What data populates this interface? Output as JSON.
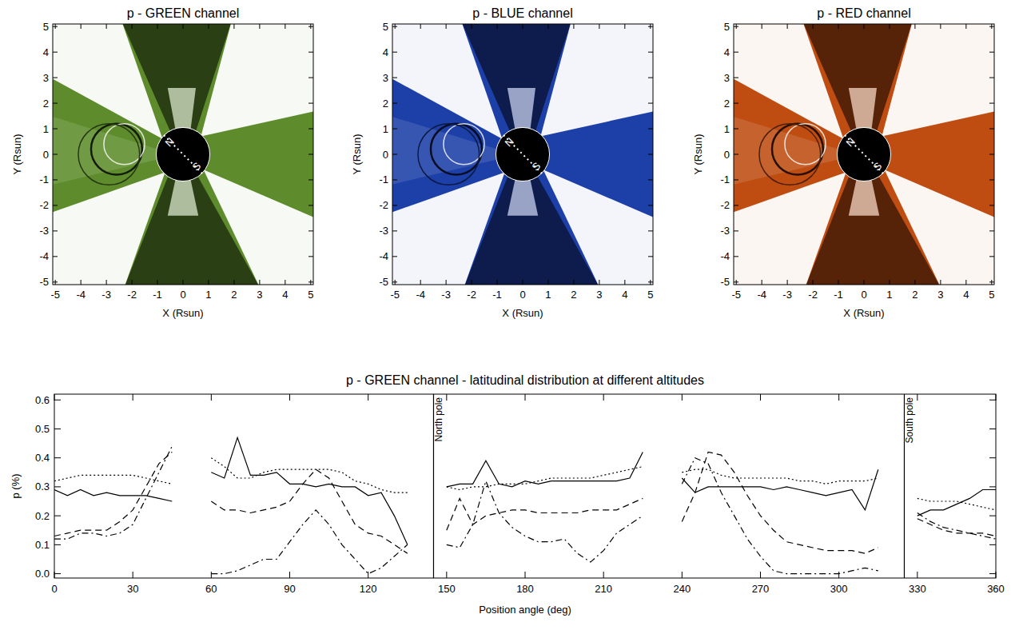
{
  "chart_data": [
    {
      "type": "image",
      "title": "p - GREEN channel",
      "xlabel": "X (Rsun)",
      "ylabel": "Y (Rsun)",
      "color": "#5e8c2c",
      "xlim": [
        -5.1,
        5.1
      ],
      "ylim": [
        -5.1,
        5.1
      ],
      "xticks": [
        -5,
        -4,
        -3,
        -2,
        -1,
        0,
        1,
        2,
        3,
        4,
        5
      ],
      "yticks": [
        -5,
        -4,
        -3,
        -2,
        -1,
        0,
        1,
        2,
        3,
        4,
        5
      ],
      "annotations": [
        "N",
        "S"
      ]
    },
    {
      "type": "image",
      "title": "p - BLUE channel",
      "xlabel": "X (Rsun)",
      "ylabel": "Y (Rsun)",
      "color": "#1d3fa8",
      "xlim": [
        -5.1,
        5.1
      ],
      "ylim": [
        -5.1,
        5.1
      ],
      "xticks": [
        -5,
        -4,
        -3,
        -2,
        -1,
        0,
        1,
        2,
        3,
        4,
        5
      ],
      "yticks": [
        -5,
        -4,
        -3,
        -2,
        -1,
        0,
        1,
        2,
        3,
        4,
        5
      ],
      "annotations": [
        "N",
        "S"
      ]
    },
    {
      "type": "image",
      "title": "p - RED channel",
      "xlabel": "X (Rsun)",
      "ylabel": "Y (Rsun)",
      "color": "#bf4d12",
      "xlim": [
        -5.1,
        5.1
      ],
      "ylim": [
        -5.1,
        5.1
      ],
      "xticks": [
        -5,
        -4,
        -3,
        -2,
        -1,
        0,
        1,
        2,
        3,
        4,
        5
      ],
      "yticks": [
        -5,
        -4,
        -3,
        -2,
        -1,
        0,
        1,
        2,
        3,
        4,
        5
      ],
      "annotations": [
        "N",
        "S"
      ]
    },
    {
      "type": "line",
      "title": "p - GREEN channel - latitudinal distribution at different altitudes",
      "xlabel": "Position angle (deg)",
      "ylabel": "p (%)",
      "xlim": [
        0,
        360
      ],
      "ylim": [
        -0.015,
        0.62
      ],
      "xticks": [
        0,
        30,
        60,
        90,
        120,
        150,
        180,
        210,
        240,
        270,
        300,
        330,
        360
      ],
      "yticks": [
        {
          "value": 0,
          "label": "0.0"
        },
        0.1,
        0.2,
        0.3,
        0.4,
        0.5,
        0.6
      ],
      "annotations": [
        {
          "x": 145,
          "text": "North pole"
        },
        {
          "x": 325,
          "text": "South pole"
        }
      ],
      "x": [
        0,
        5,
        10,
        15,
        20,
        25,
        30,
        35,
        40,
        45,
        50,
        55,
        60,
        65,
        70,
        75,
        80,
        85,
        90,
        95,
        100,
        105,
        110,
        115,
        120,
        125,
        130,
        135,
        140,
        145,
        150,
        155,
        160,
        165,
        170,
        175,
        180,
        185,
        190,
        195,
        200,
        205,
        210,
        215,
        220,
        225,
        230,
        235,
        240,
        245,
        250,
        255,
        260,
        265,
        270,
        275,
        280,
        285,
        290,
        295,
        300,
        305,
        310,
        315,
        320,
        325,
        330,
        335,
        340,
        345,
        350,
        355,
        360
      ],
      "series": [
        {
          "color": "#000000",
          "line_style": "solid",
          "values": [
            0.29,
            0.27,
            0.29,
            0.27,
            0.28,
            0.27,
            0.27,
            0.27,
            0.26,
            0.25,
            null,
            null,
            0.35,
            0.33,
            0.47,
            0.34,
            0.34,
            0.35,
            0.31,
            0.31,
            0.3,
            0.31,
            0.3,
            0.3,
            0.27,
            0.28,
            0.2,
            0.1,
            null,
            null,
            0.3,
            0.31,
            0.31,
            0.39,
            0.31,
            0.3,
            0.32,
            0.31,
            0.32,
            0.32,
            0.32,
            0.32,
            0.32,
            0.32,
            0.33,
            0.42,
            null,
            null,
            0.33,
            0.28,
            0.3,
            0.3,
            0.3,
            0.3,
            0.3,
            0.29,
            0.3,
            0.29,
            0.28,
            0.27,
            0.28,
            0.29,
            0.22,
            0.36,
            null,
            null,
            0.2,
            0.22,
            0.22,
            0.24,
            0.26,
            0.29,
            0.29
          ]
        },
        {
          "color": "#000000",
          "line_style": "dotted",
          "values": [
            0.32,
            0.33,
            0.34,
            0.34,
            0.34,
            0.34,
            0.34,
            0.33,
            0.32,
            0.31,
            null,
            null,
            0.4,
            0.37,
            0.33,
            0.33,
            0.35,
            0.36,
            0.36,
            0.36,
            0.36,
            0.36,
            0.35,
            0.32,
            0.31,
            0.29,
            0.28,
            0.28,
            null,
            null,
            0.3,
            0.29,
            0.3,
            0.3,
            0.31,
            0.31,
            0.31,
            0.32,
            0.33,
            0.33,
            0.33,
            0.33,
            0.34,
            0.35,
            0.36,
            0.37,
            null,
            null,
            0.35,
            0.36,
            0.36,
            0.34,
            0.33,
            0.33,
            0.33,
            0.33,
            0.33,
            0.32,
            0.32,
            0.31,
            0.32,
            0.32,
            0.32,
            0.33,
            null,
            null,
            0.26,
            0.25,
            0.25,
            0.25,
            0.24,
            0.23,
            0.22
          ]
        },
        {
          "color": "#000000",
          "line_style": "dashed",
          "values": [
            0.13,
            0.14,
            0.15,
            0.15,
            0.15,
            0.18,
            0.22,
            0.3,
            0.38,
            0.42,
            null,
            null,
            0.25,
            0.22,
            0.22,
            0.21,
            0.22,
            0.23,
            0.25,
            0.31,
            0.36,
            0.33,
            0.25,
            0.17,
            0.14,
            0.13,
            0.1,
            0.07,
            null,
            null,
            0.15,
            0.26,
            0.17,
            0.2,
            0.21,
            0.22,
            0.22,
            0.21,
            0.21,
            0.21,
            0.21,
            0.22,
            0.22,
            0.22,
            0.24,
            0.26,
            null,
            null,
            0.18,
            0.28,
            0.42,
            0.41,
            0.35,
            0.27,
            0.2,
            0.15,
            0.11,
            0.1,
            0.09,
            0.08,
            0.08,
            0.08,
            0.07,
            0.09,
            null,
            null,
            0.19,
            0.17,
            0.15,
            0.14,
            0.14,
            0.14,
            0.13
          ]
        },
        {
          "color": "#000000",
          "line_style": "dashdot",
          "values": [
            0.12,
            0.12,
            0.14,
            0.14,
            0.13,
            0.14,
            0.17,
            0.26,
            0.35,
            0.44,
            null,
            null,
            0.0,
            0.0,
            0.01,
            0.03,
            0.05,
            0.05,
            0.11,
            0.17,
            0.22,
            0.17,
            0.1,
            0.05,
            0.0,
            0.02,
            0.06,
            0.1,
            null,
            null,
            0.1,
            0.09,
            0.17,
            0.32,
            0.21,
            0.16,
            0.13,
            0.11,
            0.11,
            0.12,
            0.07,
            0.04,
            0.08,
            0.14,
            0.17,
            0.2,
            null,
            null,
            0.31,
            0.4,
            0.38,
            0.28,
            0.2,
            0.12,
            0.06,
            0.01,
            0.0,
            0.0,
            0.0,
            0.0,
            0.0,
            0.01,
            0.02,
            0.01,
            null,
            null,
            0.21,
            0.18,
            0.16,
            0.15,
            0.14,
            0.13,
            0.12
          ]
        }
      ]
    }
  ]
}
